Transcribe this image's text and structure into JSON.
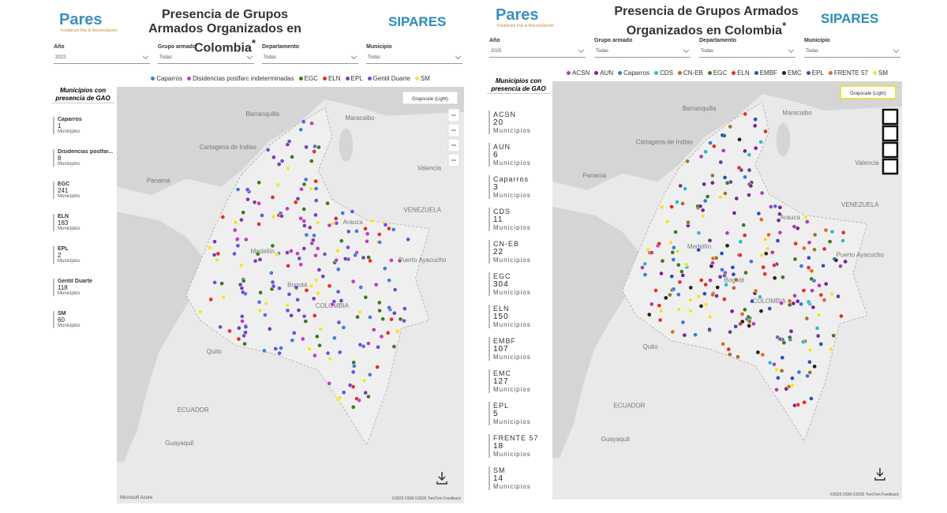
{
  "panels": [
    {
      "logo": "Pares",
      "logo_tagline": "Fundación Paz & Reconciliación",
      "title": "Presencia de Grupos Armados Organizados en Colombia",
      "title_mark": "*",
      "brand": "SIPARES",
      "filters": [
        {
          "label": "Año",
          "value": "2022"
        },
        {
          "label": "Grupo armado",
          "value": "Todas"
        },
        {
          "label": "Departamento",
          "value": "Todas"
        },
        {
          "label": "Municipio",
          "value": "Todas"
        }
      ],
      "legend": [
        {
          "name": "Caparros",
          "color": "#4a78d8"
        },
        {
          "name": "Disidencias postfarc indeterminadas",
          "color": "#c23cc2"
        },
        {
          "name": "EGC",
          "color": "#3d7a1f"
        },
        {
          "name": "ELN",
          "color": "#e0302a"
        },
        {
          "name": "EPL",
          "color": "#7b3db3"
        },
        {
          "name": "Gentil Duarte",
          "color": "#6b52d6"
        },
        {
          "name": "SM",
          "color": "#f2e23a"
        }
      ],
      "sidebar_title": "Municipios con presencia de GAO",
      "unit": "Municipios",
      "cards": [
        {
          "name": "Caparros",
          "count": 1
        },
        {
          "name": "Disidencias postfar...",
          "count": 8
        },
        {
          "name": "EGC",
          "count": 241
        },
        {
          "name": "ELN",
          "count": 183
        },
        {
          "name": "EPL",
          "count": 2
        },
        {
          "name": "Gentil Duarte",
          "count": 118
        },
        {
          "name": "SM",
          "count": 60
        }
      ],
      "map_style": "Grayscale (Light)",
      "places": [
        "Barranquilla",
        "Cartagena de Indias",
        "Maracaibo",
        "Valencia",
        "Panamá",
        "Medellín",
        "Bogotá",
        "COLOMBIA",
        "VENEZUELA",
        "Arauca",
        "Puerto Ayacucho",
        "Quito",
        "ECUADOR",
        "Guayaquil"
      ],
      "provider": "Microsoft Azure",
      "attribution": "©2025 OSM ©2025 TomTom Feedback"
    },
    {
      "logo": "Pares",
      "logo_tagline": "Fundación Paz & Reconciliación",
      "title": "Presencia de Grupos Armados Organizados en Colombia",
      "title_mark": "*",
      "brand": "SIPARES",
      "filters": [
        {
          "label": "Año",
          "value": "2025"
        },
        {
          "label": "Grupo armado",
          "value": "Todas"
        },
        {
          "label": "Departamento",
          "value": "Todas"
        },
        {
          "label": "Municipio",
          "value": "Todas"
        }
      ],
      "legend": [
        {
          "name": "ACSN",
          "color": "#b23cb2"
        },
        {
          "name": "AUN",
          "color": "#7a2392"
        },
        {
          "name": "Caparros",
          "color": "#3a78d8"
        },
        {
          "name": "CDS",
          "color": "#33b8c9"
        },
        {
          "name": "CN-EB",
          "color": "#a3712b"
        },
        {
          "name": "EGC",
          "color": "#3d7a1f"
        },
        {
          "name": "ELN",
          "color": "#e0302a"
        },
        {
          "name": "EMBF",
          "color": "#2a4fc0"
        },
        {
          "name": "EMC",
          "color": "#222222"
        },
        {
          "name": "EPL",
          "color": "#6b3a93"
        },
        {
          "name": "FRENTE 57",
          "color": "#e06a20"
        },
        {
          "name": "SM",
          "color": "#f0e040"
        }
      ],
      "sidebar_title": "Municipios con presencia de GAO",
      "unit": "Municipios",
      "cards": [
        {
          "name": "ACSN",
          "count": 20
        },
        {
          "name": "AUN",
          "count": 6
        },
        {
          "name": "Caparros",
          "count": 3
        },
        {
          "name": "CDS",
          "count": 11
        },
        {
          "name": "CN-EB",
          "count": 22
        },
        {
          "name": "EGC",
          "count": 304
        },
        {
          "name": "ELN",
          "count": 150
        },
        {
          "name": "EMBF",
          "count": 107
        },
        {
          "name": "EMC",
          "count": 127
        },
        {
          "name": "EPL",
          "count": 5
        },
        {
          "name": "FRENTE 57",
          "count": 18
        },
        {
          "name": "SM",
          "count": 14
        }
      ],
      "map_style": "Grayscale (Light)",
      "places": [
        "Barranquilla",
        "Cartagena de Indias",
        "Maracaibo",
        "Valencia",
        "Panamá",
        "Medellín",
        "Bogotá",
        "COLOMBIA",
        "VENEZUELA",
        "Arauca",
        "Puerto Ayacucho",
        "Quito",
        "ECUADOR",
        "Guayaquil"
      ],
      "attribution": "©2025 OSM ©2025 TomTom Feedback"
    }
  ]
}
